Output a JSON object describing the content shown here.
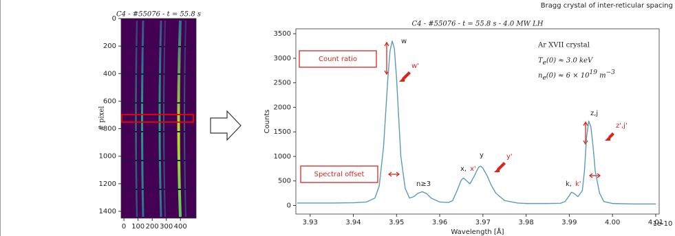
{
  "header_text": "Bragg crystal of inter-reticular spacing",
  "chart_data": [
    {
      "type": "image",
      "title": "C4 - #55076 - t = 55.8 s",
      "ylabel": "# pixel",
      "xlim": [
        -20,
        511
      ],
      "ylim": [
        1450,
        0
      ],
      "xticks": [
        0,
        100,
        200,
        300,
        400
      ],
      "yticks": [
        0,
        200,
        400,
        600,
        800,
        1000,
        1200,
        1400
      ]
    },
    {
      "type": "line",
      "title": "C4 - #55076 - t = 55.8 s - 4.0 MW LH",
      "xlabel": "Wavelength [Å]",
      "ylabel": "Counts",
      "x_scale_label": "1e-10",
      "xlim": [
        3.9267,
        4.0108
      ],
      "ylim": [
        -175,
        3600
      ],
      "xticks": [
        3.93,
        3.94,
        3.95,
        3.96,
        3.97,
        3.98,
        3.99,
        {
          "value": 4.0,
          "label": "4.00"
        },
        4.01
      ],
      "yticks": [
        0,
        500,
        1000,
        1500,
        2000,
        2500,
        3000,
        3500
      ],
      "x": [
        3.927,
        3.93,
        3.935,
        3.94,
        3.943,
        3.945,
        3.946,
        3.947,
        3.948,
        3.9485,
        3.949,
        3.9495,
        3.95,
        3.9505,
        3.951,
        3.952,
        3.953,
        3.954,
        3.955,
        3.956,
        3.957,
        3.958,
        3.96,
        3.962,
        3.963,
        3.964,
        3.965,
        3.9655,
        3.966,
        3.967,
        3.968,
        3.969,
        3.9695,
        3.97,
        3.971,
        3.972,
        3.973,
        3.975,
        3.978,
        3.98,
        3.985,
        3.988,
        3.989,
        3.99,
        3.9905,
        3.991,
        3.992,
        3.993,
        3.9935,
        3.994,
        3.9945,
        3.995,
        3.9955,
        3.996,
        3.997,
        3.998,
        4.0,
        4.005,
        4.01
      ],
      "series": [
        {
          "color": "#5a9ab8",
          "values": [
            50,
            50,
            50,
            55,
            70,
            150,
            400,
            1200,
            2600,
            3150,
            3350,
            3200,
            2600,
            1800,
            1000,
            350,
            150,
            180,
            250,
            280,
            240,
            150,
            70,
            60,
            100,
            300,
            520,
            560,
            520,
            440,
            600,
            780,
            800,
            760,
            600,
            400,
            250,
            100,
            50,
            40,
            40,
            45,
            80,
            200,
            270,
            250,
            180,
            300,
            700,
            1400,
            1720,
            1600,
            1200,
            700,
            250,
            80,
            40,
            30,
            30
          ]
        }
      ],
      "annotations": [
        "w",
        "w'",
        "Count ratio",
        "n≥3",
        "x,",
        "x'",
        "y",
        "y'",
        "k,",
        "k'",
        "z,j",
        "z',j'",
        "Spectral offset",
        "Ar XVII crystal"
      ],
      "te_label": [
        "T",
        "e",
        "(0) ≈ 3.0 keV"
      ],
      "ne_label": [
        "n",
        "e",
        "(0) ≈ 6 × 10",
        "19",
        " m",
        "−3"
      ]
    }
  ]
}
